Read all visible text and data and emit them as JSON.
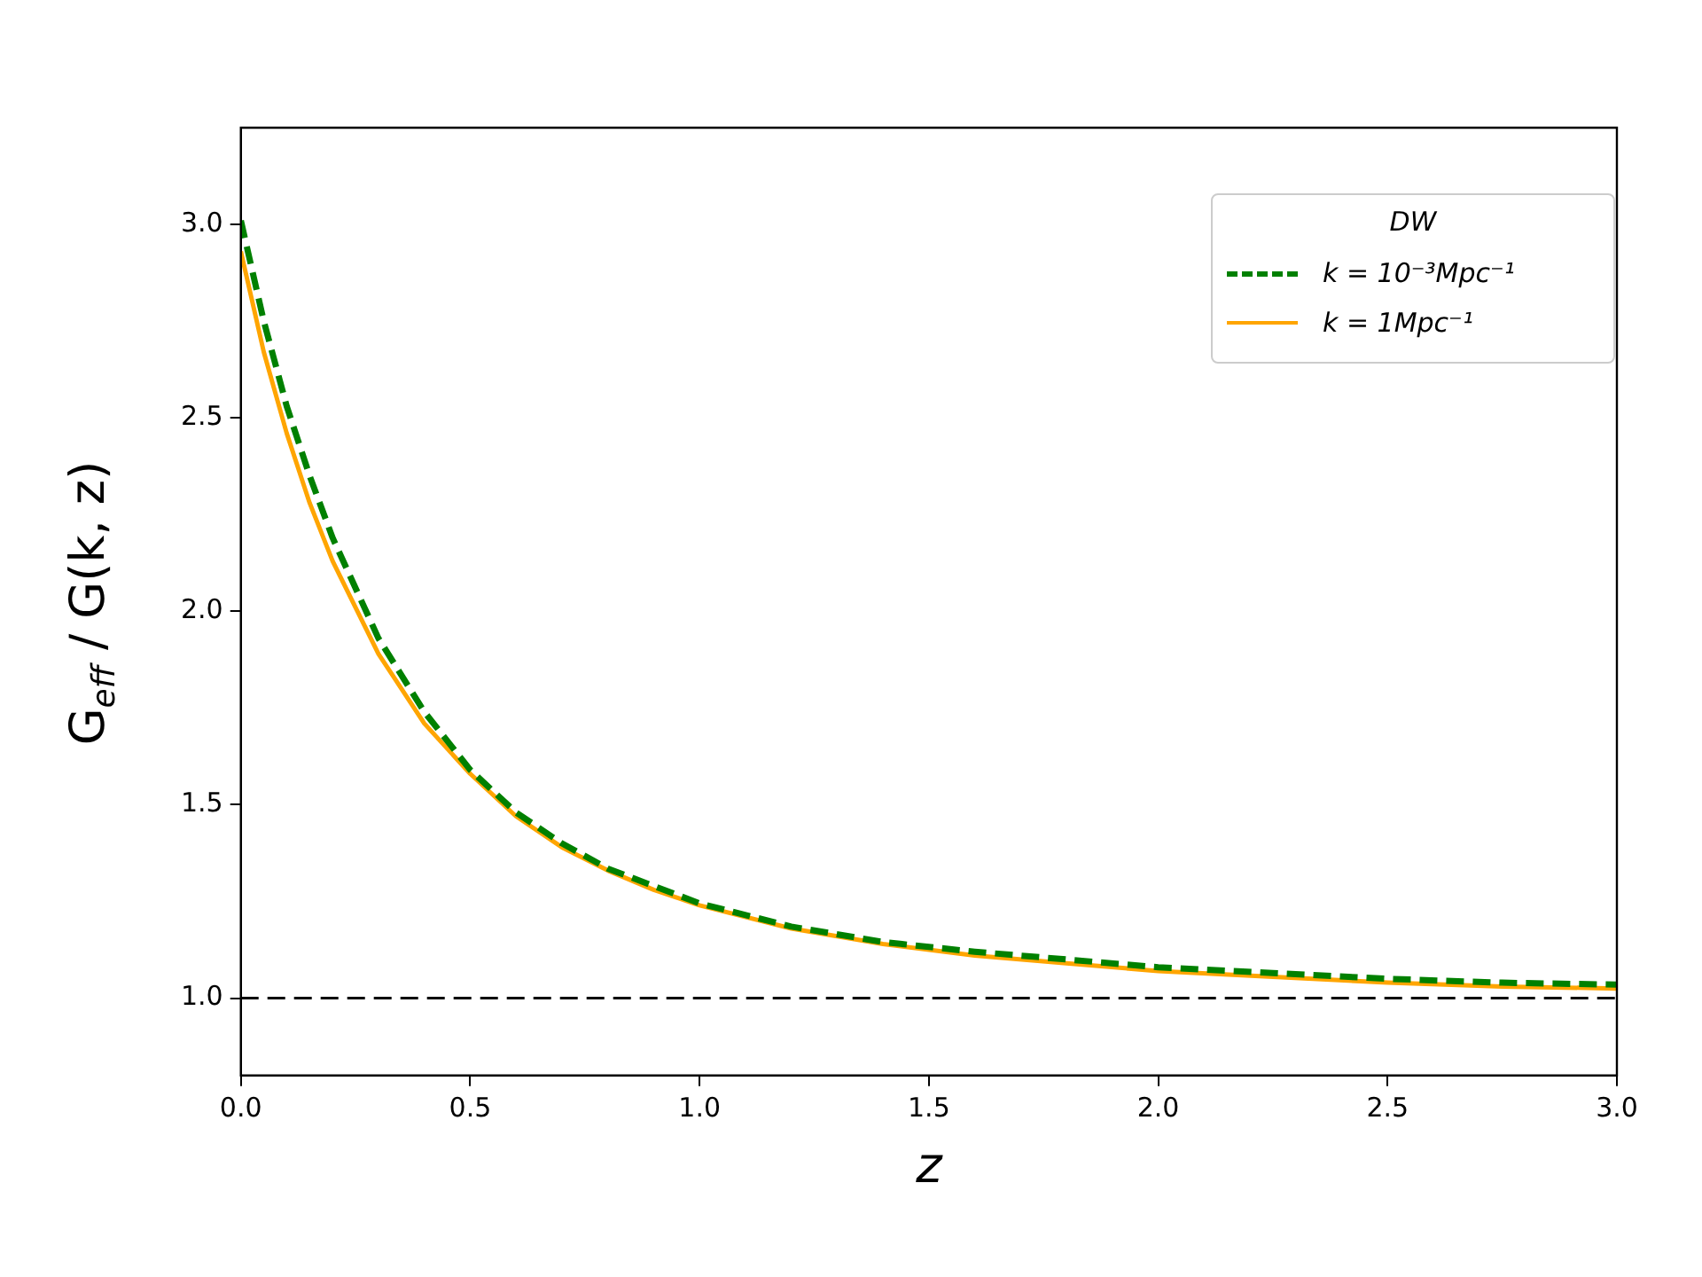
{
  "chart_data": {
    "type": "line",
    "xlabel": "z",
    "ylabel": "G$_{eff}$ / G(k, z)",
    "legend_title": "DW",
    "legend": "top right",
    "grid": false,
    "marker": "none",
    "xlim": [
      0,
      3
    ],
    "ylim": [
      0.8,
      3.25
    ],
    "xticks": [
      {
        "value": 0,
        "label": "0.0"
      },
      {
        "value": 0.5,
        "label": "0.5"
      },
      {
        "value": 1,
        "label": "1.0"
      },
      {
        "value": 1.5,
        "label": "1.5"
      },
      {
        "value": 2,
        "label": "2.0"
      },
      {
        "value": 2.5,
        "label": "2.5"
      },
      {
        "value": 3,
        "label": "3.0"
      }
    ],
    "yticks": [
      {
        "value": 1,
        "label": "1.0"
      },
      {
        "value": 1.5,
        "label": "1.5"
      },
      {
        "value": 2,
        "label": "2.0"
      },
      {
        "value": 2.5,
        "label": "2.5"
      },
      {
        "value": 3,
        "label": "3.0"
      }
    ],
    "x": [
      0,
      0.05,
      0.1,
      0.15,
      0.2,
      0.3,
      0.4,
      0.5,
      0.6,
      0.7,
      0.8,
      0.9,
      1.0,
      1.2,
      1.4,
      1.6,
      1.8,
      2.0,
      2.25,
      2.5,
      2.75,
      3.0
    ],
    "series": [
      {
        "name": "k = 10⁻³Mpc⁻¹",
        "color": "#008000",
        "line_style": "dashed",
        "values": [
          3.01,
          2.75,
          2.53,
          2.35,
          2.19,
          1.93,
          1.74,
          1.59,
          1.48,
          1.4,
          1.335,
          1.29,
          1.245,
          1.185,
          1.145,
          1.12,
          1.1,
          1.08,
          1.065,
          1.05,
          1.04,
          1.035
        ]
      },
      {
        "name": "k = 1Mpc⁻¹",
        "color": "#ffa500",
        "line_style": "solid",
        "values": [
          2.93,
          2.67,
          2.46,
          2.28,
          2.13,
          1.89,
          1.71,
          1.58,
          1.47,
          1.39,
          1.33,
          1.28,
          1.24,
          1.18,
          1.14,
          1.11,
          1.09,
          1.07,
          1.055,
          1.04,
          1.03,
          1.025
        ]
      }
    ],
    "ref_lines": [
      {
        "axis": "y",
        "value": 1,
        "color": "#000000",
        "line_style": "dashed"
      }
    ]
  }
}
